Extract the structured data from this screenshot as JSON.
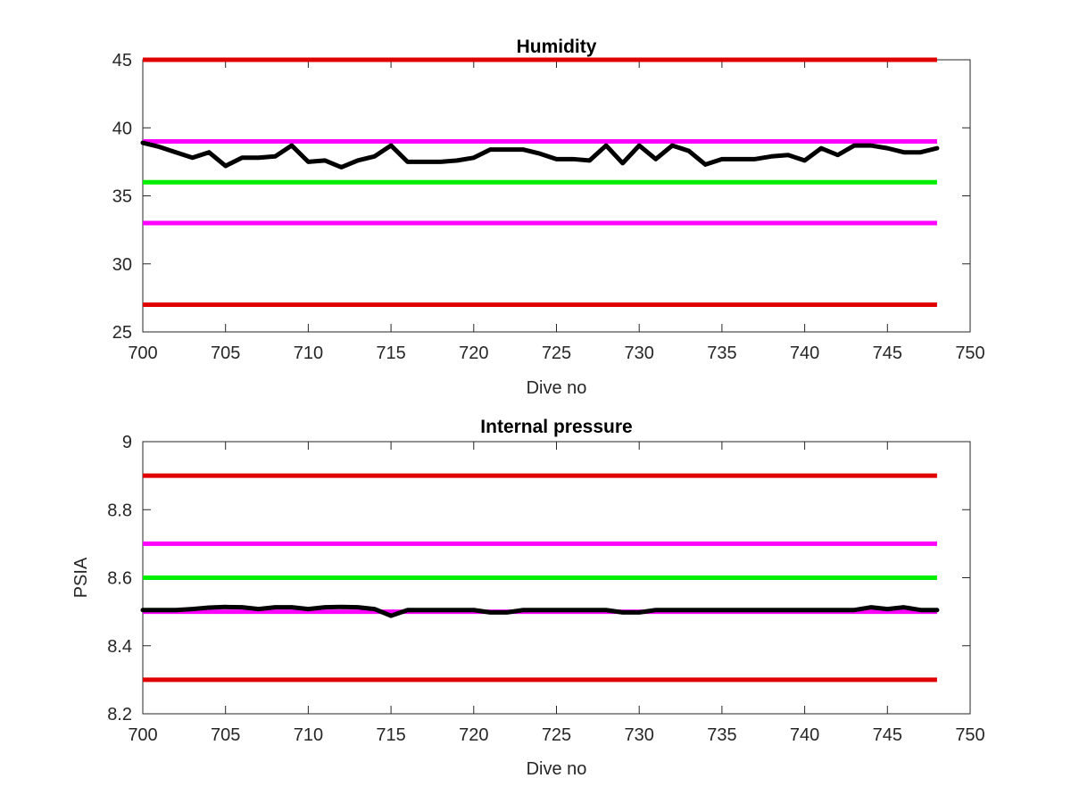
{
  "chart_data": [
    {
      "type": "line",
      "title": "Humidity",
      "xlabel": "Dive no",
      "ylabel": "",
      "xlim": [
        700,
        750
      ],
      "ylim": [
        25,
        45
      ],
      "xticks": [
        700,
        705,
        710,
        715,
        720,
        725,
        730,
        735,
        740,
        745,
        750
      ],
      "yticks": [
        25,
        30,
        35,
        40,
        45
      ],
      "xtick_labels": [
        "700",
        "705",
        "710",
        "715",
        "720",
        "725",
        "730",
        "735",
        "740",
        "745",
        "750"
      ],
      "ytick_labels": [
        "25",
        "30",
        "35",
        "40",
        "45"
      ],
      "grid": false,
      "legend": "none",
      "reference_lines": [
        {
          "y": 45,
          "x": [
            700,
            748
          ],
          "color": "#e00000"
        },
        {
          "y": 39,
          "x": [
            700,
            748
          ],
          "color": "#ff00ff"
        },
        {
          "y": 36,
          "x": [
            700,
            748
          ],
          "color": "#00ee00"
        },
        {
          "y": 33,
          "x": [
            700,
            748
          ],
          "color": "#ff00ff"
        },
        {
          "y": 27,
          "x": [
            700,
            748
          ],
          "color": "#e00000"
        }
      ],
      "series": [
        {
          "color": "#000000",
          "x": [
            700,
            701,
            702,
            703,
            704,
            705,
            706,
            707,
            708,
            709,
            710,
            711,
            712,
            713,
            714,
            715,
            716,
            717,
            718,
            719,
            720,
            721,
            722,
            723,
            724,
            725,
            726,
            727,
            728,
            729,
            730,
            731,
            732,
            733,
            734,
            735,
            736,
            737,
            738,
            739,
            740,
            741,
            742,
            743,
            744,
            745,
            746,
            747,
            748
          ],
          "y": [
            38.9,
            38.6,
            38.2,
            37.8,
            38.2,
            37.2,
            37.8,
            37.8,
            37.9,
            38.7,
            37.5,
            37.6,
            37.1,
            37.6,
            37.9,
            38.7,
            37.5,
            37.5,
            37.5,
            37.6,
            37.8,
            38.4,
            38.4,
            38.4,
            38.1,
            37.7,
            37.7,
            37.6,
            38.7,
            37.4,
            38.7,
            37.7,
            38.7,
            38.3,
            37.3,
            37.7,
            37.7,
            37.7,
            37.9,
            38.0,
            37.6,
            38.5,
            38.0,
            38.7,
            38.7,
            38.5,
            38.2,
            38.2,
            38.5
          ]
        }
      ]
    },
    {
      "type": "line",
      "title": "Internal pressure",
      "xlabel": "Dive no",
      "ylabel": "PSIA",
      "xlim": [
        700,
        750
      ],
      "ylim": [
        8.2,
        9
      ],
      "xticks": [
        700,
        705,
        710,
        715,
        720,
        725,
        730,
        735,
        740,
        745,
        750
      ],
      "yticks": [
        8.2,
        8.4,
        8.6,
        8.8,
        9
      ],
      "xtick_labels": [
        "700",
        "705",
        "710",
        "715",
        "720",
        "725",
        "730",
        "735",
        "740",
        "745",
        "750"
      ],
      "ytick_labels": [
        "8.2",
        "8.4",
        "8.6",
        "8.8",
        "9"
      ],
      "grid": false,
      "legend": "none",
      "reference_lines": [
        {
          "y": 8.9,
          "x": [
            700,
            748
          ],
          "color": "#e00000"
        },
        {
          "y": 8.7,
          "x": [
            700,
            748
          ],
          "color": "#ff00ff"
        },
        {
          "y": 8.6,
          "x": [
            700,
            748
          ],
          "color": "#00ee00"
        },
        {
          "y": 8.5,
          "x": [
            700,
            748
          ],
          "color": "#ff00ff"
        },
        {
          "y": 8.3,
          "x": [
            700,
            748
          ],
          "color": "#e00000"
        }
      ],
      "series": [
        {
          "color": "#000000",
          "x": [
            700,
            701,
            702,
            703,
            704,
            705,
            706,
            707,
            708,
            709,
            710,
            711,
            712,
            713,
            714,
            715,
            716,
            717,
            718,
            719,
            720,
            721,
            722,
            723,
            724,
            725,
            726,
            727,
            728,
            729,
            730,
            731,
            732,
            733,
            734,
            735,
            736,
            737,
            738,
            739,
            740,
            741,
            742,
            743,
            744,
            745,
            746,
            747,
            748
          ],
          "y": [
            8.505,
            8.505,
            8.505,
            8.508,
            8.512,
            8.514,
            8.513,
            8.508,
            8.513,
            8.513,
            8.508,
            8.513,
            8.514,
            8.513,
            8.508,
            8.488,
            8.505,
            8.505,
            8.505,
            8.505,
            8.505,
            8.498,
            8.498,
            8.505,
            8.505,
            8.505,
            8.505,
            8.505,
            8.505,
            8.498,
            8.498,
            8.505,
            8.505,
            8.505,
            8.505,
            8.505,
            8.505,
            8.505,
            8.505,
            8.505,
            8.505,
            8.505,
            8.505,
            8.505,
            8.513,
            8.508,
            8.513,
            8.505,
            8.505
          ]
        }
      ]
    }
  ]
}
